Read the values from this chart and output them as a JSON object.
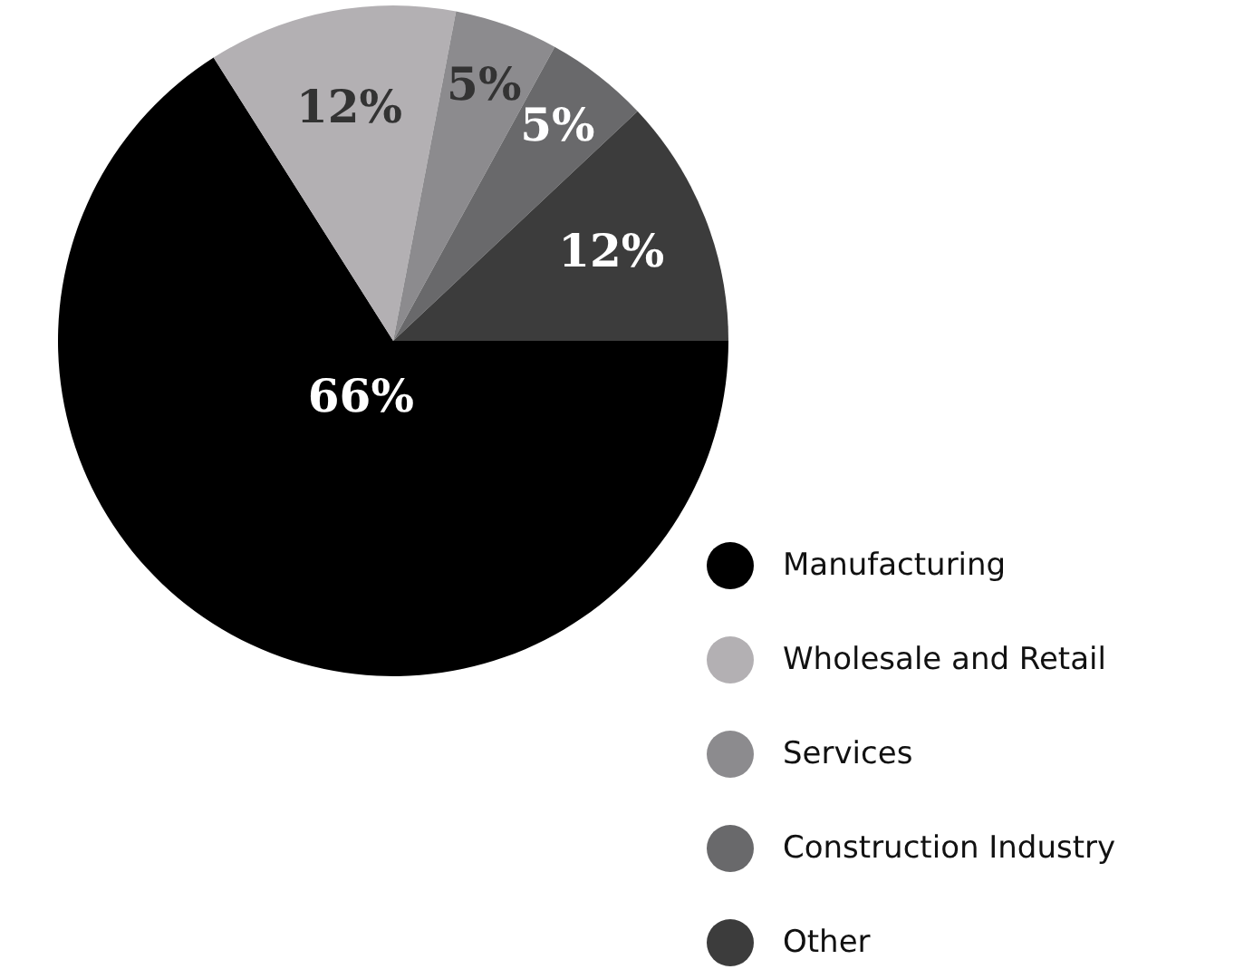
{
  "chart_data": {
    "type": "pie",
    "categories": [
      "Manufacturing",
      "Wholesale and Retail",
      "Services",
      "Construction Industry",
      "Other"
    ],
    "values": [
      66,
      12,
      5,
      5,
      12
    ],
    "colors": [
      "#000000",
      "#b3b0b3",
      "#8c8b8e",
      "#69696b",
      "#3c3c3c"
    ],
    "value_labels": [
      "66%",
      "12%",
      "5%",
      "5%",
      "12%"
    ],
    "legend": "bottom right"
  }
}
